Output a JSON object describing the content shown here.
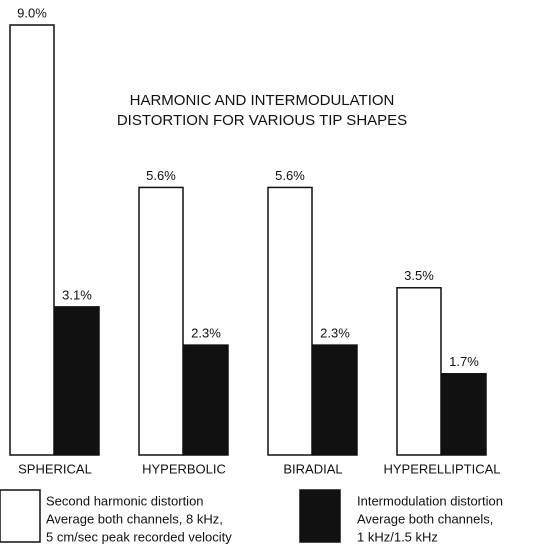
{
  "chart_data": {
    "type": "bar",
    "title": [
      "HARMONIC AND INTERMODULATION",
      "DISTORTION FOR VARIOUS TIP SHAPES"
    ],
    "categories": [
      "SPHERICAL",
      "HYPERBOLIC",
      "BIRADIAL",
      "HYPERELLIPTICAL"
    ],
    "series": [
      {
        "name": "Second harmonic distortion",
        "details": [
          "Average both channels, 8 kHz,",
          "5 cm/sec peak recorded velocity"
        ],
        "color": "#ffffff",
        "values": [
          9.0,
          5.6,
          5.6,
          3.5
        ],
        "value_labels": [
          "9.0%",
          "5.6%",
          "5.6%",
          "3.5%"
        ]
      },
      {
        "name": "Intermodulation distortion",
        "details": [
          "Average both channels,",
          "1 kHz/1.5 kHz"
        ],
        "color": "#111111",
        "values": [
          3.1,
          2.3,
          2.3,
          1.7
        ],
        "value_labels": [
          "3.1%",
          "2.3%",
          "2.3%",
          "1.7%"
        ]
      }
    ]
  }
}
